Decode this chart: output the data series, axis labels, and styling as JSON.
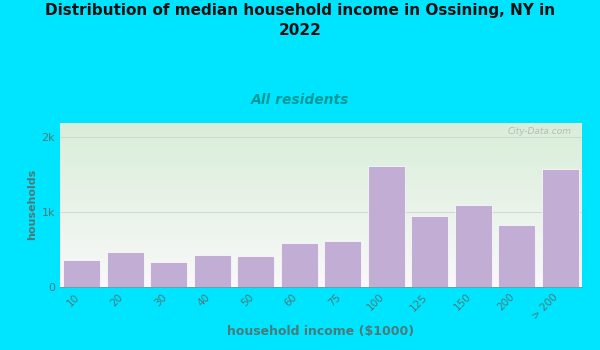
{
  "title": "Distribution of median household income in Ossining, NY in\n2022",
  "subtitle": "All residents",
  "xlabel": "household income ($1000)",
  "ylabel": "households",
  "categories": [
    "10",
    "20",
    "30",
    "40",
    "50",
    "60",
    "75",
    "100",
    "125",
    "150",
    "200",
    "> 200"
  ],
  "values": [
    360,
    470,
    330,
    430,
    410,
    590,
    620,
    1620,
    950,
    1100,
    830,
    1580
  ],
  "bar_color": "#c2aed4",
  "bar_edge_color": "#ffffff",
  "background_outer": "#00e5ff",
  "title_color": "#111111",
  "subtitle_color": "#009999",
  "axis_label_color": "#4a7a7a",
  "tick_label_color": "#4a7a7a",
  "grid_color": "#cccccc",
  "ylim": [
    0,
    2200
  ],
  "yticks": [
    0,
    1000,
    2000
  ],
  "ytick_labels": [
    "0",
    "1k",
    "2k"
  ],
  "watermark": "City-Data.com",
  "title_fontsize": 11,
  "subtitle_fontsize": 10,
  "xlabel_fontsize": 9,
  "ylabel_fontsize": 8,
  "bg_top_color": "#d8edd8",
  "bg_bottom_color": "#f8f8f8"
}
